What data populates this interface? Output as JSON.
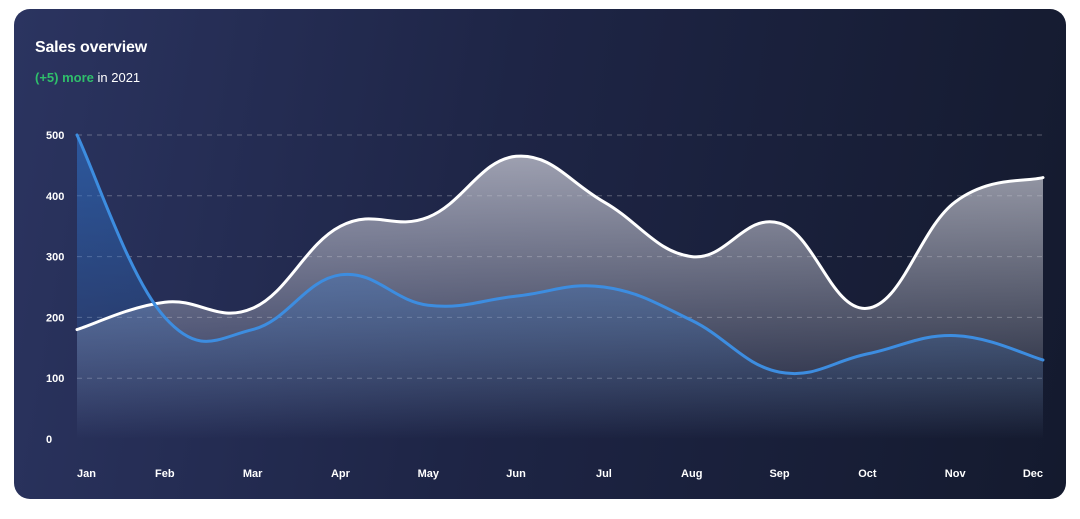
{
  "header": {
    "title": "Sales overview",
    "subtitle_highlight": "(+5) more",
    "subtitle_rest": " in 2021"
  },
  "colors": {
    "series_white": "#ffffff",
    "series_blue": "#3d8de0",
    "highlight": "#2fbf6b"
  },
  "chart_data": {
    "type": "area",
    "categories": [
      "Jan",
      "Feb",
      "Mar",
      "Apr",
      "May",
      "Jun",
      "Jul",
      "Aug",
      "Sep",
      "Oct",
      "Nov",
      "Dec"
    ],
    "series": [
      {
        "values": [
          180,
          225,
          215,
          350,
          365,
          465,
          390,
          300,
          355,
          215,
          390,
          430
        ]
      },
      {
        "values": [
          500,
          200,
          180,
          270,
          220,
          235,
          250,
          195,
          110,
          140,
          170,
          130
        ]
      }
    ],
    "ylim": [
      0,
      500
    ],
    "yticks": [
      "0",
      "100",
      "200",
      "300",
      "400",
      "500"
    ],
    "grid": true,
    "legend": "none"
  }
}
